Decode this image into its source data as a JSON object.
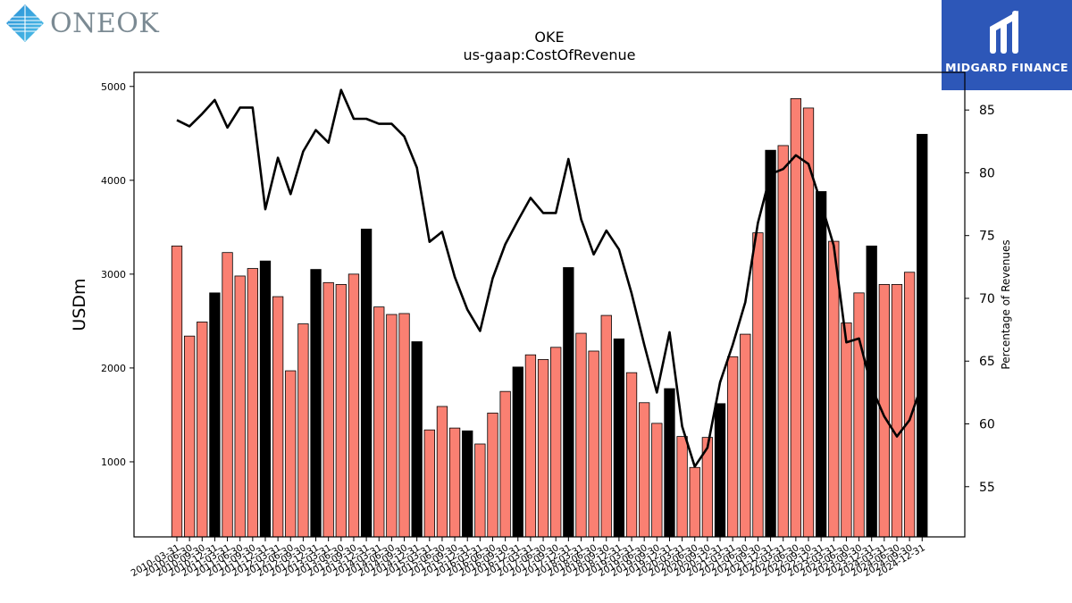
{
  "header": {
    "left_logo_text": "ONEOK",
    "right_logo_text": "MIDGARD FINANCE"
  },
  "chart_data": {
    "type": "bar",
    "title": "OKE",
    "subtitle": "us-gaap:CostOfRevenue",
    "ylabel": "USDm",
    "y2label": "Percentage of Revenues",
    "ylim": [
      200,
      5150
    ],
    "y2lim": [
      51,
      88
    ],
    "yticks": [
      1000,
      2000,
      3000,
      4000,
      5000
    ],
    "y2ticks": [
      55,
      60,
      65,
      70,
      75,
      80,
      85
    ],
    "colors": {
      "quarterly": "#fa8072",
      "annual": "#000000",
      "line": "#000000"
    },
    "categories": [
      "2010-03-31",
      "2010-06-30",
      "2010-09-30",
      "2010-12-31",
      "2011-03-31",
      "2011-06-30",
      "2011-09-30",
      "2011-12-31",
      "2012-03-31",
      "2012-06-30",
      "2012-09-30",
      "2012-12-31",
      "2013-03-31",
      "2013-06-30",
      "2013-09-30",
      "2013-12-31",
      "2014-03-31",
      "2014-06-30",
      "2014-09-30",
      "2014-12-31",
      "2015-03-31",
      "2015-06-30",
      "2015-09-30",
      "2015-12-31",
      "2016-03-31",
      "2016-06-30",
      "2016-09-30",
      "2016-12-31",
      "2017-03-31",
      "2017-06-30",
      "2017-09-30",
      "2017-12-31",
      "2018-03-31",
      "2018-06-30",
      "2018-09-30",
      "2018-12-31",
      "2019-03-31",
      "2019-06-30",
      "2019-09-30",
      "2019-12-31",
      "2020-03-31",
      "2020-06-30",
      "2020-09-30",
      "2020-12-31",
      "2021-03-31",
      "2021-06-30",
      "2021-09-30",
      "2021-12-31",
      "2022-03-31",
      "2022-06-30",
      "2022-09-30",
      "2022-12-31",
      "2023-03-31",
      "2023-06-30",
      "2023-09-30",
      "2023-12-31",
      "2024-03-31",
      "2024-06-30",
      "2024-09-30",
      "2024-12-31"
    ],
    "series": [
      {
        "type": "bar",
        "values": [
          3300,
          2340,
          2490,
          2800,
          3230,
          2980,
          3060,
          3140,
          2760,
          1970,
          2470,
          3050,
          2910,
          2890,
          3000,
          3480,
          2650,
          2570,
          2580,
          2280,
          1340,
          1590,
          1360,
          1330,
          1190,
          1520,
          1750,
          2010,
          2140,
          2090,
          2220,
          3070,
          2370,
          2180,
          2560,
          2310,
          1950,
          1630,
          1410,
          1780,
          1270,
          940,
          1260,
          1620,
          2120,
          2360,
          3440,
          4320,
          4370,
          4870,
          4770,
          3880,
          3350,
          2480,
          2800,
          3300,
          2890,
          2890,
          3020,
          4490
        ],
        "annual": [
          false,
          false,
          false,
          true,
          false,
          false,
          false,
          true,
          false,
          false,
          false,
          true,
          false,
          false,
          false,
          true,
          false,
          false,
          false,
          true,
          false,
          false,
          false,
          true,
          false,
          false,
          false,
          true,
          false,
          false,
          false,
          true,
          false,
          false,
          false,
          true,
          false,
          false,
          false,
          true,
          false,
          false,
          false,
          true,
          false,
          false,
          false,
          true,
          false,
          false,
          false,
          true,
          false,
          false,
          false,
          true,
          false,
          false,
          false,
          true
        ]
      },
      {
        "type": "line",
        "axis": "right",
        "values": [
          84.2,
          83.7,
          84.7,
          85.8,
          83.6,
          85.2,
          85.2,
          77.1,
          81.2,
          78.3,
          81.7,
          83.4,
          82.4,
          86.6,
          84.3,
          84.3,
          83.9,
          83.9,
          82.9,
          80.4,
          74.5,
          75.3,
          71.7,
          69.1,
          67.4,
          71.6,
          74.3,
          76.2,
          78.0,
          76.8,
          76.8,
          81.1,
          76.3,
          73.5,
          75.4,
          73.9,
          70.4,
          66.3,
          62.5,
          67.3,
          59.8,
          56.6,
          58.1,
          63.3,
          66.3,
          69.7,
          76.0,
          79.9,
          80.3,
          81.4,
          80.7,
          77.6,
          74.2,
          66.5,
          66.8,
          62.9,
          60.6,
          59.0,
          60.3,
          63.2
        ]
      }
    ]
  }
}
